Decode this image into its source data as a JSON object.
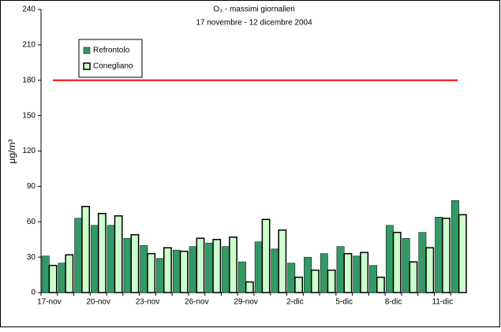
{
  "chart_data": {
    "type": "bar",
    "title": "O₃ - massimi giornalieri",
    "subtitle": "17 novembre - 12 dicembre 2004",
    "y_label": "μg/m³",
    "categories": [
      "17-nov",
      null,
      null,
      "20-nov",
      null,
      null,
      "23-nov",
      null,
      null,
      "26-nov",
      null,
      null,
      "29-nov",
      null,
      null,
      "2-dic",
      null,
      null,
      "5-dic",
      null,
      null,
      "8-dic",
      null,
      null,
      "11-dic",
      null
    ],
    "series": [
      {
        "name": "Refrontolo",
        "color": "#339966",
        "values": [
          31,
          25,
          63,
          57,
          57,
          46,
          40,
          29,
          36,
          39,
          42,
          39,
          26,
          43,
          37,
          25,
          30,
          33,
          39,
          31,
          23,
          57,
          46,
          51,
          64,
          78
        ]
      },
      {
        "name": "Conegliano",
        "color": "#ccffcc",
        "values": [
          23,
          32,
          73,
          67,
          65,
          49,
          33,
          38,
          35,
          46,
          45,
          47,
          9,
          62,
          53,
          13,
          19,
          19,
          33,
          34,
          13,
          51,
          26,
          38,
          63,
          66
        ]
      }
    ],
    "threshold": {
      "value": 180,
      "color": "#ff0000"
    },
    "ylim": [
      0,
      240
    ],
    "yticks": [
      0,
      30,
      60,
      90,
      120,
      150,
      180,
      210,
      240
    ],
    "legend": "upper left"
  }
}
